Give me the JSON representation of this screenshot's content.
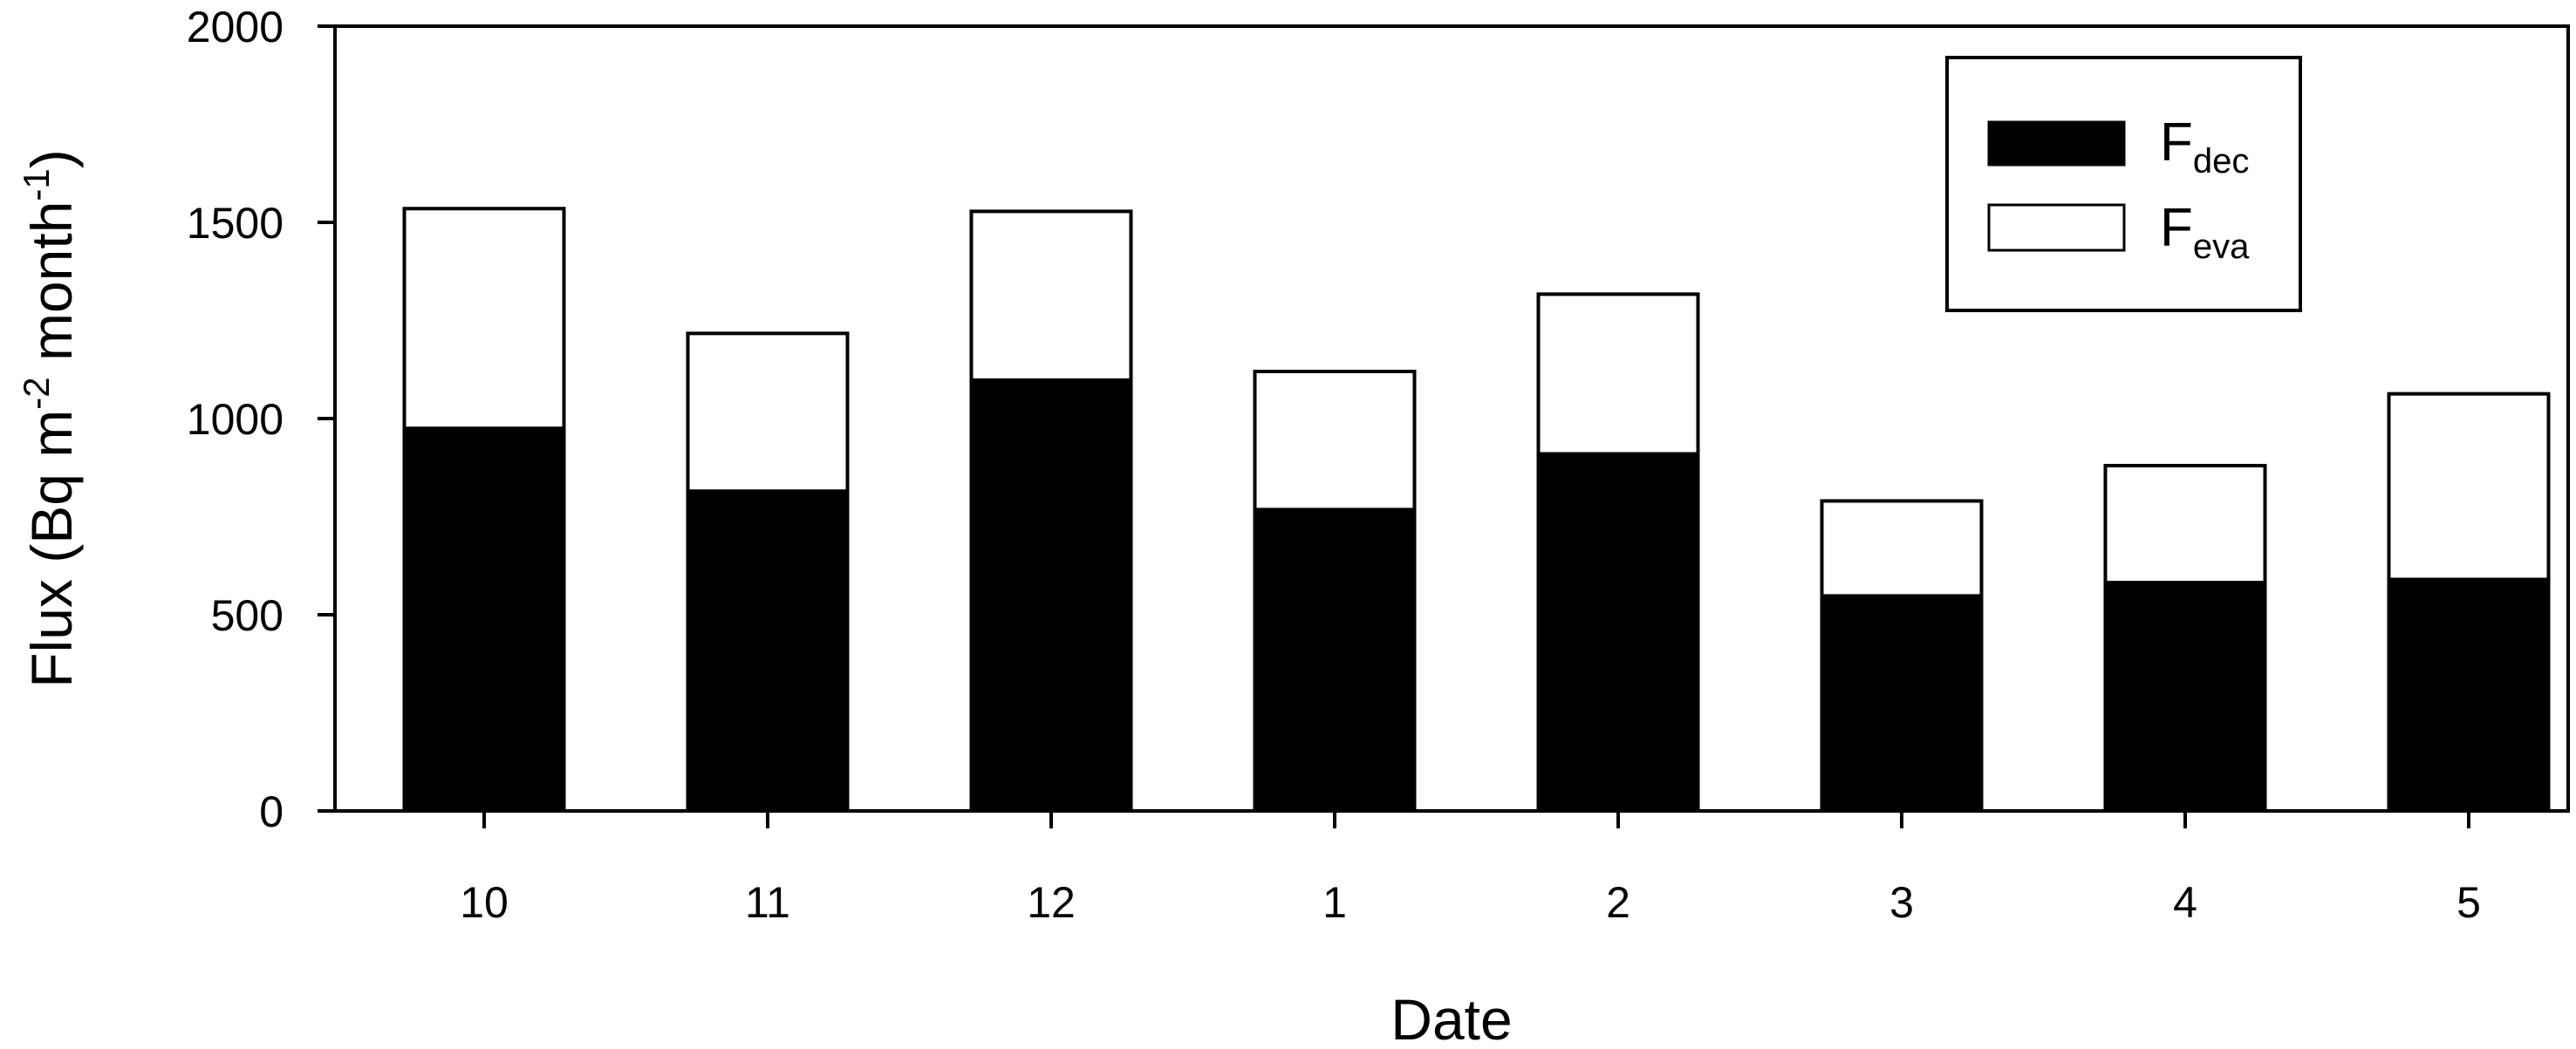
{
  "chart_data": {
    "type": "bar",
    "stacked": true,
    "categories": [
      "10",
      "11",
      "12",
      "1",
      "2",
      "3",
      "4",
      "5"
    ],
    "series": [
      {
        "name": "F_dec",
        "name_main": "F",
        "name_sub": "dec",
        "color": "#000000",
        "values": [
          975,
          815,
          1098,
          768,
          910,
          548,
          582,
          590
        ]
      },
      {
        "name": "F_eva",
        "name_main": "F",
        "name_sub": "eva",
        "color": "#ffffff",
        "values": [
          560,
          402,
          430,
          352,
          407,
          242,
          298,
          473
        ]
      }
    ],
    "xlabel": "Date",
    "ylabel": {
      "before": "Flux (Bq m",
      "sup1": "-2",
      "middle": " month",
      "sup2": "-1",
      "after": ")"
    },
    "ylim": [
      0,
      2000
    ],
    "yticks": [
      0,
      500,
      1000,
      1500,
      2000
    ],
    "grid": false,
    "legend_position": "top-right"
  }
}
